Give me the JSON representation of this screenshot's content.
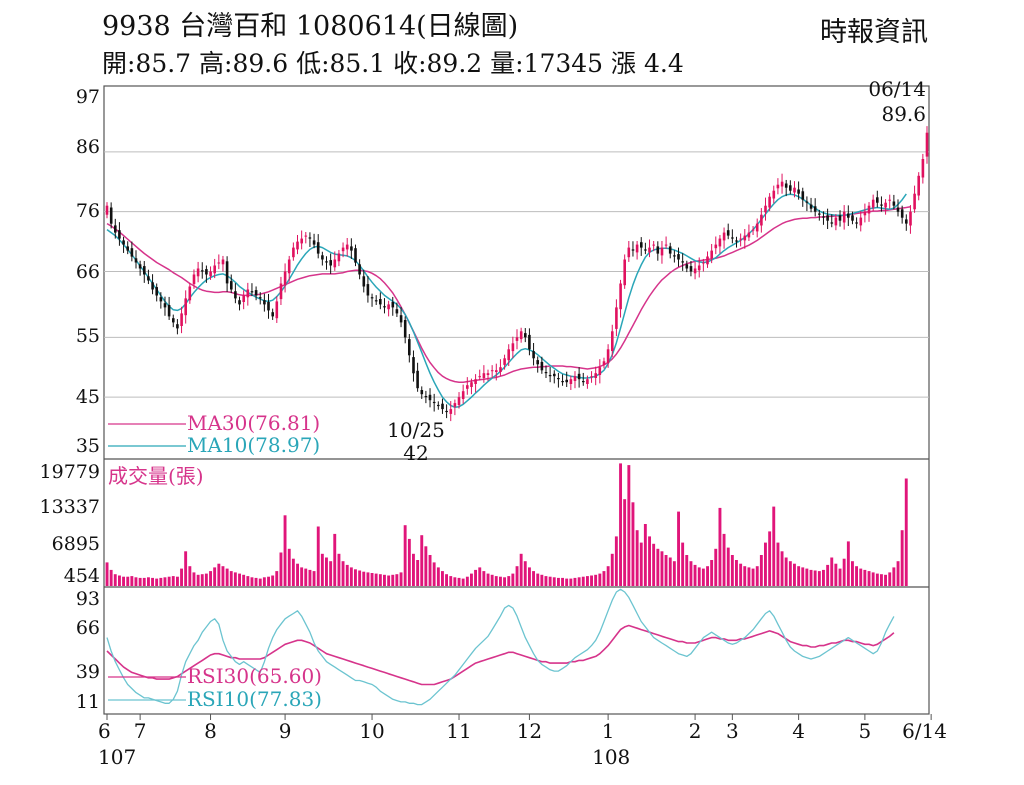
{
  "header": {
    "title": "9938  台灣百和 1080614(日線圖)",
    "ohlc_line": "開:85.7 高:89.6 低:85.1 收:89.2 量:17345 漲 4.4",
    "source": "時報資訊"
  },
  "chart_data": [
    {
      "type": "candlestick",
      "name": "price",
      "ylim": [
        35,
        97
      ],
      "y_ticks": [
        "97",
        "86",
        "76",
        "66",
        "55",
        "45",
        "35"
      ],
      "grid": true,
      "legend": [
        "MA30(76.81)",
        "MA10(78.97)"
      ],
      "annotations": {
        "high_date": "06/14",
        "high_value": "89.6",
        "low_date": "10/25",
        "low_value": "42"
      },
      "close": [
        77.0,
        74.0,
        72.5,
        71.5,
        70.5,
        69.5,
        68.5,
        67.5,
        66.5,
        65.5,
        64.5,
        63.0,
        62.0,
        61.0,
        60.0,
        58.5,
        57.5,
        56.5,
        59.0,
        61.5,
        63.5,
        65.5,
        66.5,
        66.0,
        65.5,
        66.0,
        67.0,
        67.5,
        68.0,
        64.0,
        63.0,
        61.5,
        60.5,
        62.0,
        63.0,
        62.5,
        62.0,
        61.5,
        60.5,
        59.5,
        58.5,
        61.0,
        64.0,
        66.0,
        68.0,
        70.0,
        71.0,
        71.5,
        72.0,
        71.5,
        70.5,
        69.0,
        68.0,
        67.5,
        67.0,
        68.0,
        69.0,
        70.0,
        70.5,
        69.5,
        67.5,
        65.5,
        63.5,
        62.0,
        61.5,
        61.0,
        60.5,
        60.0,
        60.5,
        60.0,
        59.0,
        57.5,
        55.0,
        52.0,
        49.0,
        46.5,
        45.5,
        45.0,
        44.5,
        44.0,
        43.5,
        43.0,
        42.5,
        43.0,
        44.0,
        45.0,
        46.0,
        47.0,
        47.5,
        48.0,
        48.5,
        49.0,
        49.0,
        49.5,
        49.5,
        50.0,
        51.5,
        53.0,
        54.0,
        55.0,
        56.0,
        55.0,
        53.0,
        51.5,
        50.5,
        49.5,
        49.0,
        48.5,
        48.5,
        48.0,
        47.5,
        47.5,
        48.0,
        48.5,
        48.0,
        47.5,
        48.0,
        48.5,
        49.0,
        50.0,
        51.0,
        53.0,
        56.0,
        60.0,
        64.0,
        68.0,
        70.0,
        69.5,
        70.5,
        70.0,
        69.5,
        70.0,
        70.5,
        69.0,
        70.0,
        70.5,
        69.0,
        68.5,
        68.0,
        67.5,
        66.5,
        66.0,
        66.5,
        67.0,
        67.5,
        68.5,
        69.5,
        70.5,
        71.5,
        72.5,
        72.0,
        71.5,
        71.0,
        71.5,
        72.0,
        72.5,
        73.0,
        74.0,
        75.5,
        77.0,
        78.5,
        79.5,
        80.5,
        81.0,
        80.0,
        79.5,
        80.0,
        79.0,
        78.0,
        77.5,
        76.5,
        76.0,
        75.5,
        75.0,
        74.5,
        74.0,
        75.0,
        74.5,
        76.0,
        75.0,
        74.5,
        74.0,
        75.0,
        76.0,
        77.0,
        78.0,
        77.5,
        77.0,
        77.5,
        78.0,
        77.0,
        76.0,
        75.0,
        74.0,
        76.0,
        79.0,
        82.0,
        84.8,
        89.2
      ],
      "ma10": [
        73.0,
        72.5,
        72.0,
        71.3,
        70.5,
        69.7,
        68.8,
        67.9,
        66.9,
        66.0,
        65.0,
        64.0,
        63.0,
        62.0,
        61.0,
        60.2,
        59.6,
        59.5,
        59.8,
        60.6,
        61.6,
        62.5,
        63.3,
        64.0,
        64.6,
        65.0,
        65.3,
        65.5,
        65.6,
        65.3,
        64.8,
        64.2,
        63.5,
        63.0,
        62.5,
        62.1,
        61.7,
        61.4,
        61.1,
        61.0,
        61.2,
        61.8,
        62.6,
        63.6,
        64.7,
        65.9,
        67.1,
        68.1,
        69.0,
        69.7,
        70.1,
        70.2,
        70.0,
        69.6,
        69.2,
        68.9,
        68.8,
        68.7,
        68.6,
        68.3,
        67.8,
        67.0,
        66.1,
        65.1,
        64.2,
        63.4,
        62.7,
        62.0,
        61.5,
        61.0,
        60.5,
        59.8,
        58.8,
        57.5,
        55.9,
        54.2,
        52.5,
        50.7,
        49.0,
        47.5,
        46.2,
        45.0,
        44.2,
        43.6,
        43.3,
        43.4,
        43.8,
        44.4,
        45.0,
        45.7,
        46.3,
        47.0,
        47.6,
        48.2,
        48.7,
        49.3,
        50.0,
        50.8,
        51.6,
        52.3,
        52.9,
        53.1,
        52.9,
        52.6,
        52.1,
        51.5,
        50.9,
        50.3,
        49.8,
        49.3,
        48.9,
        48.7,
        48.5,
        48.4,
        48.3,
        48.2,
        48.2,
        48.3,
        48.5,
        48.9,
        49.5,
        50.6,
        52.1,
        54.1,
        56.5,
        59.1,
        61.6,
        63.8,
        65.6,
        67.1,
        68.4,
        69.2,
        69.6,
        69.8,
        69.9,
        69.9,
        69.8,
        69.6,
        69.3,
        69.0,
        68.6,
        68.2,
        67.8,
        67.6,
        67.5,
        67.6,
        67.9,
        68.3,
        68.9,
        69.5,
        70.0,
        70.4,
        70.8,
        71.2,
        71.7,
        72.3,
        73.0,
        73.8,
        74.7,
        75.6,
        76.5,
        77.3,
        78.0,
        78.5,
        78.8,
        78.9,
        78.8,
        78.5,
        78.1,
        77.6,
        77.1,
        76.6,
        76.1,
        75.8,
        75.6,
        75.5,
        75.4,
        75.4,
        75.4,
        75.5,
        75.7,
        75.9,
        76.1,
        76.3,
        76.5,
        76.6,
        76.7,
        76.6,
        76.5,
        76.4,
        76.6,
        77.2,
        78.0,
        78.97
      ],
      "ma30": [
        74.0,
        73.6,
        73.1,
        72.6,
        72.0,
        71.4,
        70.8,
        70.2,
        69.6,
        69.0,
        68.5,
        68.0,
        67.5,
        67.1,
        66.7,
        66.3,
        65.8,
        65.4,
        65.0,
        64.5,
        64.0,
        63.6,
        63.2,
        62.9,
        62.7,
        62.6,
        62.5,
        62.5,
        62.6,
        62.6,
        62.5,
        62.3,
        62.1,
        62.0,
        62.0,
        62.0,
        62.1,
        62.2,
        62.4,
        62.6,
        62.9,
        63.2,
        63.5,
        63.8,
        64.1,
        64.4,
        64.7,
        64.9,
        65.1,
        65.3,
        65.4,
        65.5,
        65.6,
        65.6,
        65.6,
        65.6,
        65.7,
        65.8,
        66.0,
        66.1,
        66.2,
        66.2,
        66.1,
        66.0,
        65.7,
        65.3,
        64.8,
        64.1,
        63.3,
        62.4,
        61.3,
        60.1,
        58.8,
        57.4,
        56.0,
        54.6,
        53.2,
        51.9,
        50.8,
        49.9,
        49.1,
        48.5,
        48.1,
        47.8,
        47.6,
        47.5,
        47.5,
        47.6,
        47.7,
        47.8,
        47.9,
        48.0,
        48.1,
        48.2,
        48.3,
        48.5,
        48.7,
        49.0,
        49.3,
        49.5,
        49.7,
        49.8,
        49.9,
        50.0,
        50.0,
        50.1,
        50.1,
        50.2,
        50.2,
        50.2,
        50.2,
        50.1,
        50.1,
        50.0,
        49.9,
        49.8,
        49.7,
        49.8,
        49.9,
        50.1,
        50.4,
        50.8,
        51.4,
        52.2,
        53.2,
        54.4,
        55.7,
        57.0,
        58.3,
        59.6,
        60.8,
        61.9,
        62.9,
        63.8,
        64.6,
        65.2,
        65.8,
        66.3,
        66.7,
        67.0,
        67.3,
        67.5,
        67.7,
        67.8,
        67.9,
        68.0,
        68.1,
        68.2,
        68.4,
        68.6,
        68.9,
        69.2,
        69.5,
        69.8,
        70.1,
        70.4,
        70.8,
        71.2,
        71.7,
        72.2,
        72.7,
        73.2,
        73.6,
        74.0,
        74.3,
        74.5,
        74.7,
        74.8,
        74.9,
        74.9,
        75.0,
        75.0,
        75.1,
        75.1,
        75.2,
        75.2,
        75.3,
        75.3,
        75.4,
        75.5,
        75.6,
        75.7,
        75.8,
        75.9,
        76.0,
        76.1,
        76.1,
        76.2,
        76.2,
        76.3,
        76.4,
        76.5,
        76.6,
        76.7,
        76.81
      ]
    },
    {
      "type": "bar",
      "name": "volume",
      "label": "成交量(張)",
      "y_ticks": [
        "19779",
        "13337",
        "6895",
        "454"
      ],
      "ylim": [
        0,
        20000
      ],
      "values": [
        3800,
        2600,
        1900,
        1700,
        1500,
        1500,
        1600,
        1400,
        1300,
        1300,
        1400,
        1300,
        1200,
        1300,
        1400,
        1500,
        1600,
        1500,
        2800,
        5600,
        3200,
        2200,
        1800,
        1900,
        2000,
        2400,
        3000,
        3600,
        3200,
        2800,
        2400,
        2200,
        2000,
        1800,
        1600,
        1400,
        1300,
        1200,
        1400,
        1500,
        1700,
        2400,
        5400,
        11400,
        6000,
        4400,
        3600,
        3000,
        2800,
        2600,
        2400,
        9600,
        5200,
        4600,
        4000,
        8400,
        5200,
        4000,
        3400,
        3000,
        2700,
        2500,
        2300,
        2200,
        2100,
        2000,
        1900,
        1800,
        1700,
        1800,
        1900,
        2200,
        9800,
        7600,
        5200,
        4200,
        8200,
        6400,
        5000,
        3800,
        3000,
        2400,
        1900,
        1600,
        1400,
        1300,
        1200,
        1500,
        2000,
        2600,
        3000,
        2400,
        2000,
        1800,
        1600,
        1500,
        1400,
        1600,
        2000,
        3200,
        5200,
        4000,
        3000,
        2400,
        2000,
        1800,
        1600,
        1500,
        1400,
        1300,
        1300,
        1200,
        1200,
        1300,
        1400,
        1500,
        1600,
        1700,
        1800,
        2000,
        2400,
        3200,
        5200,
        8000,
        19779,
        14000,
        19500,
        13500,
        9000,
        7000,
        10000,
        8000,
        6800,
        6000,
        5600,
        5000,
        4600,
        4000,
        12000,
        7000,
        5000,
        4000,
        3400,
        3000,
        2800,
        3200,
        4200,
        6000,
        12600,
        8400,
        6200,
        5000,
        4200,
        3600,
        3200,
        3000,
        2800,
        3200,
        5000,
        7000,
        8800,
        12800,
        7000,
        5600,
        4600,
        4000,
        3600,
        3200,
        3000,
        2800,
        2600,
        2500,
        2400,
        2600,
        3400,
        4600,
        3600,
        2800,
        4400,
        7200,
        4000,
        3200,
        2800,
        2600,
        2400,
        2200,
        2000,
        1900,
        1800,
        2200,
        3000,
        4000,
        9000,
        17345
      ]
    },
    {
      "type": "line",
      "name": "rsi",
      "y_ticks": [
        "93",
        "66",
        "39",
        "11"
      ],
      "ylim": [
        5,
        99
      ],
      "legend": [
        "RSI30(65.60)",
        "RSI10(77.83)"
      ],
      "rsi10": [
        62.0,
        52.0,
        44.0,
        38.0,
        32.0,
        27.0,
        24.0,
        21.0,
        19.0,
        17.0,
        17.0,
        16.0,
        15.0,
        14.0,
        13.0,
        13.0,
        16.0,
        22.0,
        34.0,
        44.0,
        50.0,
        56.0,
        60.0,
        66.0,
        70.0,
        74.0,
        76.0,
        72.0,
        60.0,
        52.0,
        48.0,
        44.0,
        42.0,
        44.0,
        42.0,
        40.0,
        38.0,
        36.0,
        44.0,
        54.0,
        62.0,
        68.0,
        72.0,
        76.0,
        78.0,
        80.0,
        82.0,
        78.0,
        72.0,
        66.0,
        58.0,
        52.0,
        48.0,
        44.0,
        42.0,
        40.0,
        38.0,
        36.0,
        34.0,
        32.0,
        30.0,
        30.0,
        29.0,
        28.0,
        27.0,
        25.0,
        22.0,
        20.0,
        18.0,
        16.0,
        15.0,
        14.0,
        14.0,
        13.0,
        13.0,
        12.0,
        12.0,
        14.0,
        16.0,
        19.0,
        22.0,
        25.0,
        28.0,
        31.0,
        34.0,
        38.0,
        42.0,
        46.0,
        50.0,
        54.0,
        57.0,
        60.0,
        63.0,
        68.0,
        73.0,
        78.0,
        84.0,
        86.0,
        84.0,
        78.0,
        70.0,
        62.0,
        56.0,
        50.0,
        45.0,
        42.0,
        40.0,
        38.0,
        37.0,
        37.0,
        39.0,
        41.0,
        44.0,
        47.0,
        49.0,
        51.0,
        53.0,
        56.0,
        60.0,
        66.0,
        74.0,
        82.0,
        90.0,
        96.0,
        98.0,
        96.0,
        92.0,
        86.0,
        80.0,
        74.0,
        70.0,
        66.0,
        62.0,
        60.0,
        58.0,
        56.0,
        54.0,
        52.0,
        50.0,
        49.0,
        48.0,
        50.0,
        54.0,
        58.0,
        62.0,
        64.0,
        66.0,
        64.0,
        62.0,
        60.0,
        58.0,
        57.0,
        58.0,
        60.0,
        62.0,
        65.0,
        68.0,
        72.0,
        76.0,
        80.0,
        82.0,
        78.0,
        72.0,
        66.0,
        60.0,
        55.0,
        52.0,
        50.0,
        48.0,
        47.0,
        46.0,
        47.0,
        48.0,
        50.0,
        52.0,
        54.0,
        56.0,
        58.0,
        60.0,
        62.0,
        60.0,
        58.0,
        56.0,
        54.0,
        52.0,
        50.0,
        52.0,
        58.0,
        66.0,
        72.0,
        77.83
      ],
      "rsi30": [
        52.0,
        49.0,
        46.0,
        43.0,
        40.0,
        38.0,
        36.0,
        35.0,
        34.0,
        33.0,
        32.0,
        32.0,
        31.0,
        31.0,
        31.0,
        31.0,
        32.0,
        33.0,
        35.0,
        37.0,
        39.0,
        41.0,
        43.0,
        45.0,
        47.0,
        49.0,
        50.0,
        50.0,
        49.0,
        48.0,
        47.0,
        47.0,
        46.0,
        46.0,
        46.0,
        46.0,
        46.0,
        46.0,
        47.0,
        49.0,
        51.0,
        53.0,
        55.0,
        57.0,
        58.0,
        59.0,
        60.0,
        60.0,
        59.0,
        58.0,
        56.0,
        54.0,
        52.0,
        50.0,
        49.0,
        48.0,
        47.0,
        46.0,
        45.0,
        44.0,
        43.0,
        42.0,
        41.0,
        40.0,
        39.0,
        38.0,
        37.0,
        36.0,
        35.0,
        34.0,
        33.0,
        32.0,
        31.0,
        30.0,
        29.0,
        28.0,
        27.0,
        27.0,
        27.0,
        27.0,
        28.0,
        29.0,
        30.0,
        31.0,
        33.0,
        35.0,
        37.0,
        39.0,
        41.0,
        43.0,
        44.0,
        45.0,
        46.0,
        47.0,
        48.0,
        49.0,
        50.0,
        51.0,
        51.0,
        50.0,
        49.0,
        48.0,
        47.0,
        46.0,
        45.0,
        44.0,
        44.0,
        43.0,
        43.0,
        43.0,
        43.0,
        43.0,
        44.0,
        44.0,
        45.0,
        45.0,
        46.0,
        47.0,
        48.0,
        50.0,
        53.0,
        56.0,
        60.0,
        64.0,
        68.0,
        70.0,
        71.0,
        70.0,
        69.0,
        68.0,
        67.0,
        66.0,
        65.0,
        64.0,
        63.0,
        62.0,
        61.0,
        60.0,
        59.0,
        59.0,
        58.0,
        58.0,
        58.0,
        59.0,
        60.0,
        61.0,
        62.0,
        62.0,
        61.0,
        61.0,
        60.0,
        60.0,
        60.0,
        61.0,
        61.0,
        62.0,
        63.0,
        64.0,
        65.0,
        66.0,
        67.0,
        66.0,
        65.0,
        63.0,
        61.0,
        59.0,
        58.0,
        57.0,
        56.0,
        56.0,
        55.0,
        55.0,
        56.0,
        56.0,
        57.0,
        58.0,
        58.0,
        59.0,
        60.0,
        60.0,
        59.0,
        59.0,
        58.0,
        57.0,
        57.0,
        56.0,
        57.0,
        59.0,
        61.0,
        63.0,
        65.6
      ]
    }
  ],
  "x_axis": {
    "labels": [
      "6",
      "7",
      "8",
      "9",
      "10",
      "11",
      "12",
      "1",
      "2",
      "3",
      "4",
      "5",
      "6/14"
    ],
    "label_days": [
      0,
      8,
      25,
      43,
      64,
      85,
      102,
      121,
      142,
      151,
      167,
      183,
      199
    ],
    "year_labels": [
      "107",
      "108"
    ],
    "year_label_days": [
      0,
      121
    ]
  },
  "colors": {
    "up": "#e0115f",
    "down": "#111111",
    "ma30": "#d6348b",
    "ma10": "#2aa6b8",
    "volume": "#e0157a",
    "rsi30": "#d6348b",
    "rsi10": "#6cc4d0",
    "grid": "#bdbdbd",
    "frame": "#555555"
  }
}
